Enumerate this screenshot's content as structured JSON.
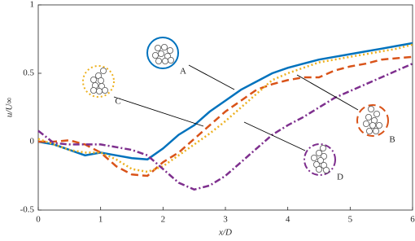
{
  "chart_data": {
    "type": "line",
    "x_label": "x/D",
    "y_label": "u/U∞",
    "x": [
      0,
      0.25,
      0.5,
      0.75,
      1,
      1.25,
      1.5,
      1.75,
      2,
      2.25,
      2.5,
      2.75,
      3,
      3.25,
      3.5,
      3.75,
      4,
      4.25,
      4.5,
      4.75,
      5,
      5.25,
      5.5,
      5.75,
      6
    ],
    "series": [
      {
        "name": "A",
        "color": "#0072bd",
        "dash": "solid",
        "values": [
          0,
          -0.02,
          -0.06,
          -0.1,
          -0.08,
          -0.1,
          -0.12,
          -0.13,
          -0.05,
          0.05,
          0.12,
          0.22,
          0.3,
          0.38,
          0.44,
          0.5,
          0.54,
          0.57,
          0.6,
          0.62,
          0.64,
          0.66,
          0.68,
          0.7,
          0.72
        ]
      },
      {
        "name": "B",
        "color": "#d95319",
        "dash": "dashed",
        "values": [
          0,
          0,
          0.01,
          -0.02,
          -0.08,
          -0.18,
          -0.24,
          -0.25,
          -0.15,
          -0.08,
          0.02,
          0.12,
          0.22,
          0.3,
          0.38,
          0.42,
          0.45,
          0.47,
          0.47,
          0.52,
          0.55,
          0.57,
          0.6,
          0.61,
          0.62
        ]
      },
      {
        "name": "C",
        "color": "#edb120",
        "dash": "dotted",
        "values": [
          0.02,
          -0.02,
          -0.06,
          -0.08,
          -0.08,
          -0.13,
          -0.2,
          -0.22,
          -0.18,
          -0.1,
          -0.02,
          0.06,
          0.15,
          0.25,
          0.35,
          0.45,
          0.5,
          0.54,
          0.58,
          0.6,
          0.62,
          0.64,
          0.66,
          0.68,
          0.71
        ]
      },
      {
        "name": "D",
        "color": "#7e2f8e",
        "dash": "dashdot",
        "values": [
          0.08,
          -0.01,
          -0.02,
          -0.02,
          -0.02,
          -0.04,
          -0.06,
          -0.1,
          -0.2,
          -0.3,
          -0.35,
          -0.32,
          -0.25,
          -0.15,
          -0.05,
          0.05,
          0.12,
          0.18,
          0.25,
          0.32,
          0.37,
          0.42,
          0.47,
          0.52,
          0.57
        ]
      }
    ],
    "xlim": [
      0,
      6
    ],
    "ylim": [
      -0.5,
      1
    ],
    "xticks": [
      0,
      1,
      2,
      3,
      4,
      5,
      6
    ],
    "yticks": [
      -0.5,
      0,
      0.5,
      1
    ]
  }
}
